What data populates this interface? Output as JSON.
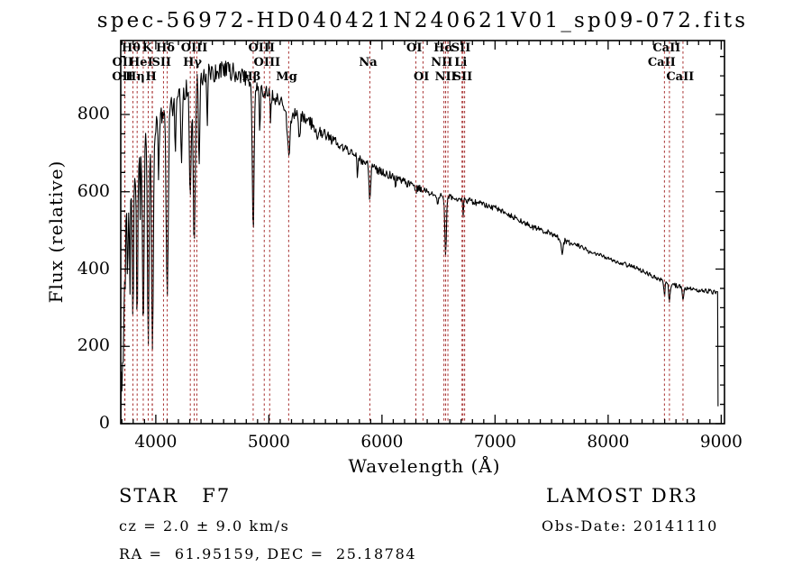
{
  "title": "spec-56972-HD040421N240621V01_sp09-072.fits",
  "info": {
    "classification": "STAR   F7",
    "cz": "cz = 2.0 ± 9.0 km/s",
    "radec": "RA =  61.95159, DEC =  25.18784",
    "survey": "LAMOST DR3",
    "obs_date": "Obs-Date: 20141110"
  },
  "chart_data": {
    "type": "line",
    "title": "spec-56972-HD040421N240621V01_sp09-072.fits",
    "xlabel": "Wavelength (Å)",
    "ylabel": "Flux (relative)",
    "xlim": [
      3690,
      9029
    ],
    "ylim": [
      0,
      991
    ],
    "x_ticks": [
      4000,
      5000,
      6000,
      7000,
      8000,
      9000
    ],
    "x_minor_step": 100,
    "y_ticks": [
      0,
      200,
      400,
      600,
      800
    ],
    "y_minor_step": 50,
    "grid": false,
    "legend": "none",
    "line_color": "#000000",
    "marker_line_color": "#a83232",
    "continuum": [
      [
        3692,
        20
      ],
      [
        3705,
        300
      ],
      [
        3720,
        470
      ],
      [
        3745,
        560
      ],
      [
        3775,
        630
      ],
      [
        3830,
        690
      ],
      [
        3900,
        740
      ],
      [
        3980,
        760
      ],
      [
        4060,
        790
      ],
      [
        4140,
        820
      ],
      [
        4220,
        845
      ],
      [
        4300,
        868
      ],
      [
        4380,
        890
      ],
      [
        4460,
        903
      ],
      [
        4540,
        912
      ],
      [
        4620,
        916
      ],
      [
        4700,
        908
      ],
      [
        4780,
        895
      ],
      [
        4860,
        882
      ],
      [
        4940,
        866
      ],
      [
        5020,
        850
      ],
      [
        5100,
        832
      ],
      [
        5180,
        812
      ],
      [
        5260,
        798
      ],
      [
        5340,
        786
      ],
      [
        5420,
        765
      ],
      [
        5500,
        748
      ],
      [
        5580,
        730
      ],
      [
        5660,
        712
      ],
      [
        5740,
        696
      ],
      [
        5820,
        682
      ],
      [
        5900,
        668
      ],
      [
        5980,
        654
      ],
      [
        6060,
        644
      ],
      [
        6140,
        634
      ],
      [
        6220,
        622
      ],
      [
        6300,
        612
      ],
      [
        6380,
        602
      ],
      [
        6460,
        595
      ],
      [
        6540,
        590
      ],
      [
        6620,
        585
      ],
      [
        6700,
        580
      ],
      [
        6780,
        576
      ],
      [
        6860,
        570
      ],
      [
        6940,
        563
      ],
      [
        7000,
        558
      ],
      [
        7080,
        547
      ],
      [
        7160,
        535
      ],
      [
        7240,
        523
      ],
      [
        7320,
        510
      ],
      [
        7400,
        502
      ],
      [
        7480,
        494
      ],
      [
        7560,
        482
      ],
      [
        7640,
        470
      ],
      [
        7720,
        462
      ],
      [
        7800,
        450
      ],
      [
        7880,
        440
      ],
      [
        7960,
        432
      ],
      [
        8040,
        424
      ],
      [
        8120,
        416
      ],
      [
        8200,
        408
      ],
      [
        8280,
        398
      ],
      [
        8360,
        388
      ],
      [
        8440,
        375
      ],
      [
        8520,
        365
      ],
      [
        8600,
        357
      ],
      [
        8680,
        352
      ],
      [
        8760,
        348
      ],
      [
        8840,
        344
      ],
      [
        8920,
        341
      ],
      [
        8971,
        338
      ]
    ],
    "absorption_lines": [
      {
        "wl": 3712,
        "flux_min": 160,
        "sigma": 5
      },
      {
        "wl": 3727,
        "flux_min": 360,
        "sigma": 5
      },
      {
        "wl": 3750,
        "flux_min": 380,
        "sigma": 5
      },
      {
        "wl": 3771,
        "flux_min": 360,
        "sigma": 5
      },
      {
        "wl": 3798,
        "flux_min": 285,
        "sigma": 6
      },
      {
        "wl": 3835,
        "flux_min": 250,
        "sigma": 6
      },
      {
        "wl": 3862,
        "flux_min": 540,
        "sigma": 4
      },
      {
        "wl": 3889,
        "flux_min": 230,
        "sigma": 7
      },
      {
        "wl": 3933,
        "flux_min": 200,
        "sigma": 7
      },
      {
        "wl": 3970,
        "flux_min": 185,
        "sigma": 8
      },
      {
        "wl": 4026,
        "flux_min": 630,
        "sigma": 4
      },
      {
        "wl": 4101,
        "flux_min": 325,
        "sigma": 9
      },
      {
        "wl": 4173,
        "flux_min": 690,
        "sigma": 4
      },
      {
        "wl": 4227,
        "flux_min": 670,
        "sigma": 5
      },
      {
        "wl": 4305,
        "flux_min": 575,
        "sigma": 8
      },
      {
        "wl": 4340,
        "flux_min": 465,
        "sigma": 9
      },
      {
        "wl": 4383,
        "flux_min": 650,
        "sigma": 5
      },
      {
        "wl": 4455,
        "flux_min": 750,
        "sigma": 4
      },
      {
        "wl": 4861,
        "flux_min": 495,
        "sigma": 8
      },
      {
        "wl": 4920,
        "flux_min": 750,
        "sigma": 4
      },
      {
        "wl": 5015,
        "flux_min": 760,
        "sigma": 4
      },
      {
        "wl": 5175,
        "flux_min": 695,
        "sigma": 12
      },
      {
        "wl": 5270,
        "flux_min": 725,
        "sigma": 6
      },
      {
        "wl": 5430,
        "flux_min": 730,
        "sigma": 4
      },
      {
        "wl": 5782,
        "flux_min": 630,
        "sigma": 4
      },
      {
        "wl": 5893,
        "flux_min": 578,
        "sigma": 8
      },
      {
        "wl": 6122,
        "flux_min": 608,
        "sigma": 4
      },
      {
        "wl": 6300,
        "flux_min": 592,
        "sigma": 3
      },
      {
        "wl": 6494,
        "flux_min": 560,
        "sigma": 4
      },
      {
        "wl": 6563,
        "flux_min": 440,
        "sigma": 7
      },
      {
        "wl": 6717,
        "flux_min": 535,
        "sigma": 3
      },
      {
        "wl": 7594,
        "flux_min": 438,
        "sigma": 8
      },
      {
        "wl": 8498,
        "flux_min": 328,
        "sigma": 5
      },
      {
        "wl": 8542,
        "flux_min": 312,
        "sigma": 6
      },
      {
        "wl": 8662,
        "flux_min": 316,
        "sigma": 6
      }
    ],
    "noise_profile": [
      [
        3692,
        150
      ],
      [
        3760,
        70
      ],
      [
        3820,
        45
      ],
      [
        3900,
        36
      ],
      [
        4100,
        32
      ],
      [
        4400,
        28
      ],
      [
        4700,
        24
      ],
      [
        5000,
        20
      ],
      [
        5300,
        16
      ],
      [
        5600,
        13
      ],
      [
        6000,
        11
      ],
      [
        6400,
        9
      ],
      [
        6800,
        8
      ],
      [
        7200,
        7
      ],
      [
        7600,
        7
      ],
      [
        8000,
        6
      ],
      [
        8400,
        6
      ],
      [
        8971,
        6
      ]
    ],
    "spectrum_end_drop": {
      "wl": 8972,
      "flux": 45
    },
    "spectral_marks": [
      {
        "wl": 3725,
        "label": "OII",
        "row": 3
      },
      {
        "wl": 3727,
        "label": "OII",
        "row": 2
      },
      {
        "wl": 3798,
        "label": "Hθ",
        "row": 1
      },
      {
        "wl": 3835,
        "label": "Hη",
        "row": 3
      },
      {
        "wl": 3889,
        "label": "HeI",
        "row": 2
      },
      {
        "wl": 3933,
        "label": "K",
        "row": 1
      },
      {
        "wl": 3968,
        "label": "H",
        "row": 3
      },
      {
        "wl": 3970,
        "label": "",
        "row": 0
      },
      {
        "wl": 4068,
        "label": "SII",
        "row": 2
      },
      {
        "wl": 4101,
        "label": "Hδ",
        "row": 1
      },
      {
        "wl": 4305,
        "label": "",
        "row": 0
      },
      {
        "wl": 4340,
        "label": "Hγ",
        "row": 2
      },
      {
        "wl": 4363,
        "label": "OIII",
        "row": 1
      },
      {
        "wl": 4861,
        "label": "Hβ",
        "row": 3
      },
      {
        "wl": 4959,
        "label": "OIII",
        "row": 1
      },
      {
        "wl": 5007,
        "label": "OIII",
        "row": 2
      },
      {
        "wl": 5175,
        "label": "Mg",
        "row": 3
      },
      {
        "wl": 5893,
        "label": "Na",
        "row": 2
      },
      {
        "wl": 6300,
        "label": "OI",
        "row": 1
      },
      {
        "wl": 6363,
        "label": "OI",
        "row": 3
      },
      {
        "wl": 6548,
        "label": "NII",
        "row": 2
      },
      {
        "wl": 6563,
        "label": "Hα",
        "row": 1
      },
      {
        "wl": 6583,
        "label": "NII",
        "row": 3
      },
      {
        "wl": 6708,
        "label": "Li",
        "row": 2
      },
      {
        "wl": 6716,
        "label": "SII",
        "row": 1
      },
      {
        "wl": 6731,
        "label": "SII",
        "row": 3
      },
      {
        "wl": 8498,
        "label": "CaII",
        "row": 2
      },
      {
        "wl": 8542,
        "label": "CaII",
        "row": 1
      },
      {
        "wl": 8662,
        "label": "CaII",
        "row": 3
      }
    ]
  }
}
